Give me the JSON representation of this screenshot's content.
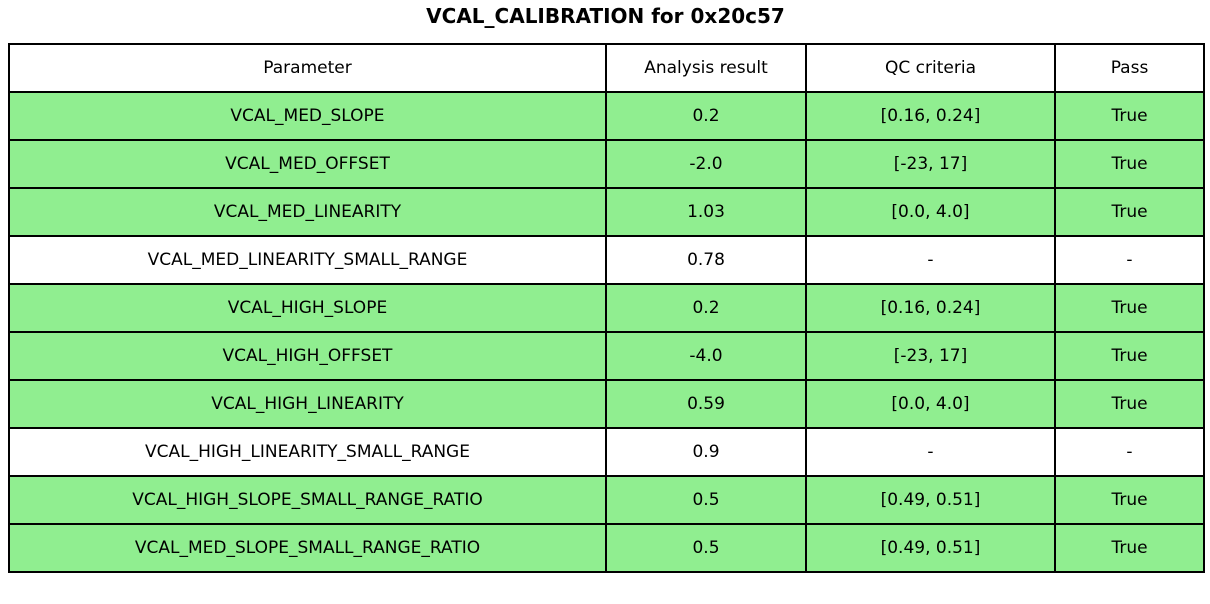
{
  "title": "VCAL_CALIBRATION for 0x20c57",
  "table": {
    "headers": [
      "Parameter",
      "Analysis result",
      "QC criteria",
      "Pass"
    ],
    "rows": [
      {
        "parameter": "VCAL_MED_SLOPE",
        "result": "0.2",
        "criteria": "[0.16, 0.24]",
        "pass": "True",
        "highlight": true
      },
      {
        "parameter": "VCAL_MED_OFFSET",
        "result": "-2.0",
        "criteria": "[-23, 17]",
        "pass": "True",
        "highlight": true
      },
      {
        "parameter": "VCAL_MED_LINEARITY",
        "result": "1.03",
        "criteria": "[0.0, 4.0]",
        "pass": "True",
        "highlight": true
      },
      {
        "parameter": "VCAL_MED_LINEARITY_SMALL_RANGE",
        "result": "0.78",
        "criteria": "-",
        "pass": "-",
        "highlight": false
      },
      {
        "parameter": "VCAL_HIGH_SLOPE",
        "result": "0.2",
        "criteria": "[0.16, 0.24]",
        "pass": "True",
        "highlight": true
      },
      {
        "parameter": "VCAL_HIGH_OFFSET",
        "result": "-4.0",
        "criteria": "[-23, 17]",
        "pass": "True",
        "highlight": true
      },
      {
        "parameter": "VCAL_HIGH_LINEARITY",
        "result": "0.59",
        "criteria": "[0.0, 4.0]",
        "pass": "True",
        "highlight": true
      },
      {
        "parameter": "VCAL_HIGH_LINEARITY_SMALL_RANGE",
        "result": "0.9",
        "criteria": "-",
        "pass": "-",
        "highlight": false
      },
      {
        "parameter": "VCAL_HIGH_SLOPE_SMALL_RANGE_RATIO",
        "result": "0.5",
        "criteria": "[0.49, 0.51]",
        "pass": "True",
        "highlight": true
      },
      {
        "parameter": "VCAL_MED_SLOPE_SMALL_RANGE_RATIO",
        "result": "0.5",
        "criteria": "[0.49, 0.51]",
        "pass": "True",
        "highlight": true
      }
    ],
    "colors": {
      "pass_row_bg": "#90ee90",
      "neutral_row_bg": "#ffffff",
      "border": "#000000"
    }
  },
  "chart_data": {
    "type": "table",
    "title": "VCAL_CALIBRATION for 0x20c57",
    "columns": [
      "Parameter",
      "Analysis result",
      "QC criteria",
      "Pass"
    ],
    "rows": [
      [
        "VCAL_MED_SLOPE",
        "0.2",
        "[0.16, 0.24]",
        "True"
      ],
      [
        "VCAL_MED_OFFSET",
        "-2.0",
        "[-23, 17]",
        "True"
      ],
      [
        "VCAL_MED_LINEARITY",
        "1.03",
        "[0.0, 4.0]",
        "True"
      ],
      [
        "VCAL_MED_LINEARITY_SMALL_RANGE",
        "0.78",
        "-",
        "-"
      ],
      [
        "VCAL_HIGH_SLOPE",
        "0.2",
        "[0.16, 0.24]",
        "True"
      ],
      [
        "VCAL_HIGH_OFFSET",
        "-4.0",
        "[-23, 17]",
        "True"
      ],
      [
        "VCAL_HIGH_LINEARITY",
        "0.59",
        "[0.0, 4.0]",
        "True"
      ],
      [
        "VCAL_HIGH_LINEARITY_SMALL_RANGE",
        "0.9",
        "-",
        "-"
      ],
      [
        "VCAL_HIGH_SLOPE_SMALL_RANGE_RATIO",
        "0.5",
        "[0.49, 0.51]",
        "True"
      ],
      [
        "VCAL_MED_SLOPE_SMALL_RANGE_RATIO",
        "0.5",
        "[0.49, 0.51]",
        "True"
      ]
    ],
    "row_highlighted_green": [
      true,
      true,
      true,
      false,
      true,
      true,
      true,
      false,
      true,
      true
    ],
    "layout_hints": {
      "highlight_color": "#90ee90",
      "grid": "all-cell-borders",
      "title_position": "top-center"
    }
  }
}
